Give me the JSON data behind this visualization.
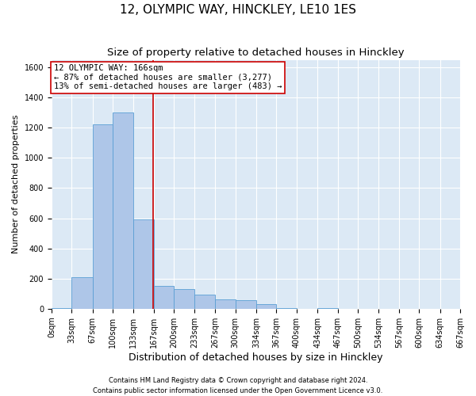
{
  "title": "12, OLYMPIC WAY, HINCKLEY, LE10 1ES",
  "subtitle": "Size of property relative to detached houses in Hinckley",
  "xlabel": "Distribution of detached houses by size in Hinckley",
  "ylabel": "Number of detached properties",
  "footnote1": "Contains HM Land Registry data © Crown copyright and database right 2024.",
  "footnote2": "Contains public sector information licensed under the Open Government Licence v3.0.",
  "bin_edges": [
    0,
    33,
    67,
    100,
    133,
    167,
    200,
    233,
    267,
    300,
    334,
    367,
    400,
    434,
    467,
    500,
    534,
    567,
    600,
    634,
    667
  ],
  "bar_heights": [
    5,
    210,
    1220,
    1300,
    590,
    150,
    130,
    95,
    60,
    55,
    30,
    5,
    0,
    5,
    0,
    0,
    0,
    0,
    0,
    0
  ],
  "bar_color": "#aec6e8",
  "bar_edge_color": "#5a9fd4",
  "property_size": 166,
  "red_line_color": "#cc0000",
  "annotation_text": "12 OLYMPIC WAY: 166sqm\n← 87% of detached houses are smaller (3,277)\n13% of semi-detached houses are larger (483) →",
  "annotation_box_color": "#ffffff",
  "annotation_box_edge_color": "#cc0000",
  "ylim": [
    0,
    1650
  ],
  "yticks": [
    0,
    200,
    400,
    600,
    800,
    1000,
    1200,
    1400,
    1600
  ],
  "background_color": "#dce9f5",
  "grid_color": "#ffffff",
  "title_fontsize": 11,
  "subtitle_fontsize": 9.5,
  "xlabel_fontsize": 9,
  "ylabel_fontsize": 8,
  "tick_fontsize": 7,
  "annotation_fontsize": 7.5
}
